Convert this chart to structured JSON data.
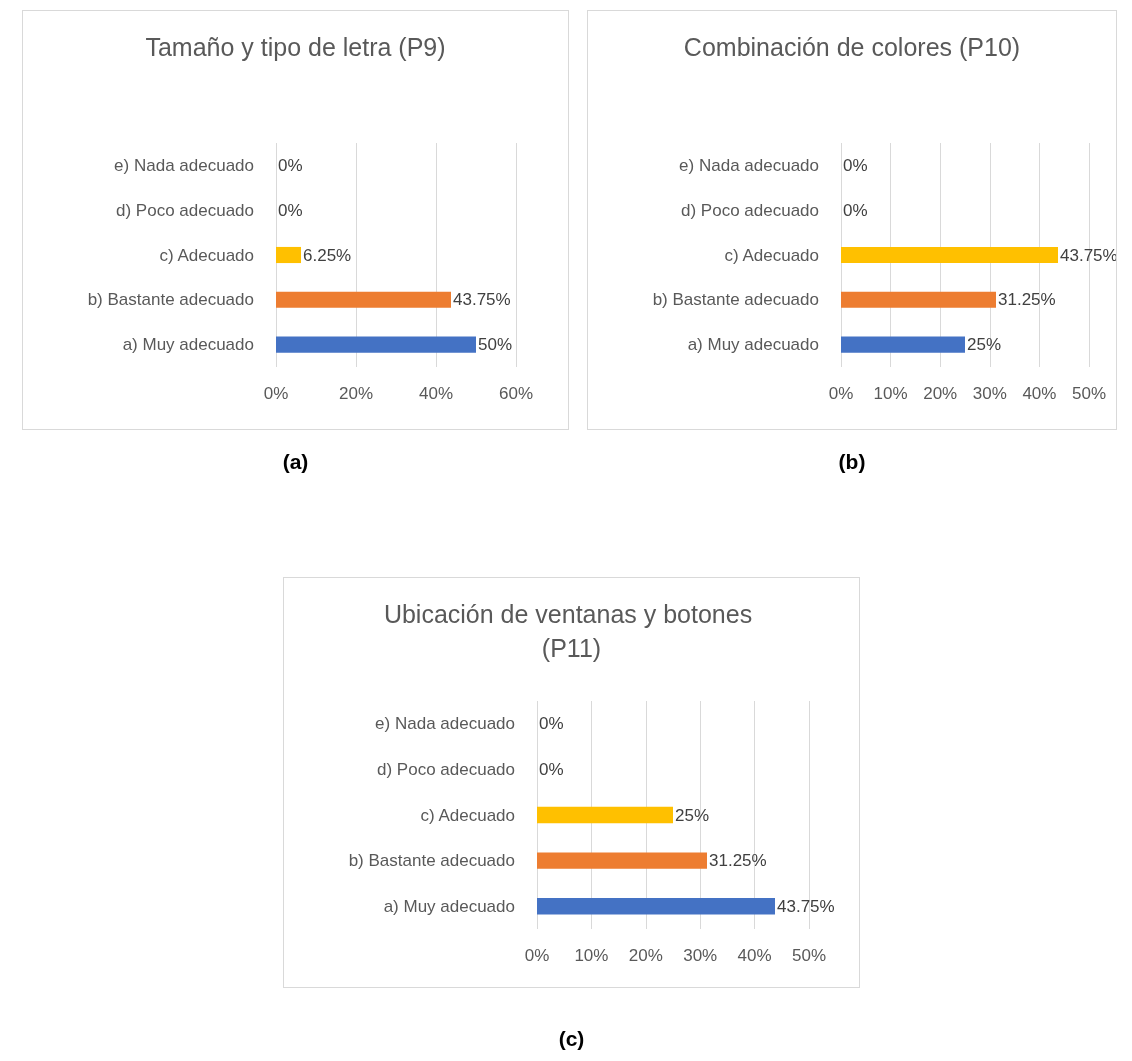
{
  "chart_data": [
    {
      "type": "bar",
      "orientation": "horizontal",
      "title": "Tamaño y tipo de letra (P9)",
      "categories": [
        "e) Nada adecuado",
        "d) Poco adecuado",
        "c) Adecuado",
        "b) Bastante adecuado",
        "a) Muy adecuado"
      ],
      "values": [
        0,
        0,
        6.25,
        43.75,
        50
      ],
      "colors": [
        "#a5a5a5",
        "#5b9bd5",
        "#ffc000",
        "#ed7d31",
        "#4472c4"
      ],
      "value_labels": [
        "0%",
        "0%",
        "6.25%",
        "43.75%",
        "50%"
      ],
      "xlim": [
        0,
        60
      ],
      "xticks": [
        {
          "value": 0,
          "label": "0%"
        },
        {
          "value": 20,
          "label": "20%"
        },
        {
          "value": 40,
          "label": "40%"
        },
        {
          "value": 60,
          "label": "60%"
        }
      ],
      "grid": "x",
      "annotations": [
        "(a)"
      ]
    },
    {
      "type": "bar",
      "orientation": "horizontal",
      "title": "Combinación de colores (P10)",
      "categories": [
        "e) Nada adecuado",
        "d) Poco adecuado",
        "c) Adecuado",
        "b) Bastante adecuado",
        "a) Muy adecuado"
      ],
      "values": [
        0,
        0,
        43.75,
        31.25,
        25
      ],
      "colors": [
        "#a5a5a5",
        "#5b9bd5",
        "#ffc000",
        "#ed7d31",
        "#4472c4"
      ],
      "value_labels": [
        "0%",
        "0%",
        "43.75%",
        "31.25%",
        "25%"
      ],
      "xlim": [
        0,
        50
      ],
      "xticks": [
        {
          "value": 0,
          "label": "0%"
        },
        {
          "value": 10,
          "label": "10%"
        },
        {
          "value": 20,
          "label": "20%"
        },
        {
          "value": 30,
          "label": "30%"
        },
        {
          "value": 40,
          "label": "40%"
        },
        {
          "value": 50,
          "label": "50%"
        }
      ],
      "grid": "x",
      "annotations": [
        "(b)"
      ]
    },
    {
      "type": "bar",
      "orientation": "horizontal",
      "title": "Ubicación de ventanas y botones (P11)",
      "categories": [
        "e) Nada adecuado",
        "d) Poco adecuado",
        "c) Adecuado",
        "b) Bastante adecuado",
        "a) Muy adecuado"
      ],
      "values": [
        0,
        0,
        25,
        31.25,
        43.75
      ],
      "colors": [
        "#a5a5a5",
        "#5b9bd5",
        "#ffc000",
        "#ed7d31",
        "#4472c4"
      ],
      "value_labels": [
        "0%",
        "0%",
        "25%",
        "31.25%",
        "43.75%"
      ],
      "xlim": [
        0,
        50
      ],
      "xticks": [
        {
          "value": 0,
          "label": "0%"
        },
        {
          "value": 10,
          "label": "10%"
        },
        {
          "value": 20,
          "label": "20%"
        },
        {
          "value": 30,
          "label": "30%"
        },
        {
          "value": 40,
          "label": "40%"
        },
        {
          "value": 50,
          "label": "50%"
        }
      ],
      "grid": "x",
      "annotations": [
        "(c)"
      ]
    }
  ]
}
